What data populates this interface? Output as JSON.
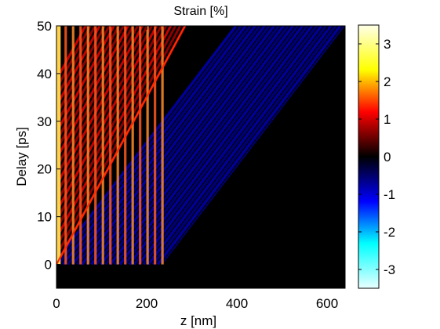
{
  "chart_data": {
    "type": "heatmap",
    "title": "Strain [%]",
    "xlabel": "z [nm]",
    "ylabel": "Delay [ps]",
    "xlim": [
      0,
      640
    ],
    "ylim": [
      -5,
      50
    ],
    "clim": [
      -3.5,
      3.5
    ],
    "x_ticks": [
      0,
      200,
      400,
      600
    ],
    "y_ticks": [
      0,
      10,
      20,
      30,
      40,
      50
    ],
    "colorbar_ticks": [
      3,
      2,
      1,
      0,
      -1,
      -2,
      -3
    ],
    "colormap": "hot-cold (cyan-blue-black-red-yellow-white)",
    "colormap_stops": [
      "#e8ffff",
      "#00ffff",
      "#0000ff",
      "#000000",
      "#ff0000",
      "#ffff00",
      "#ffffe8"
    ],
    "grid": false,
    "background_color": "#000000",
    "features": {
      "strained_region_end_z": 235,
      "positive_strain_front": {
        "z_start": 0,
        "z_end": 285,
        "delay_start": 0,
        "delay_end": 50
      },
      "negative_strain_front": {
        "z_start": 235,
        "z_end": 640,
        "delay_start": 0,
        "delay_end": 50
      },
      "stripe_count": 15
    }
  }
}
